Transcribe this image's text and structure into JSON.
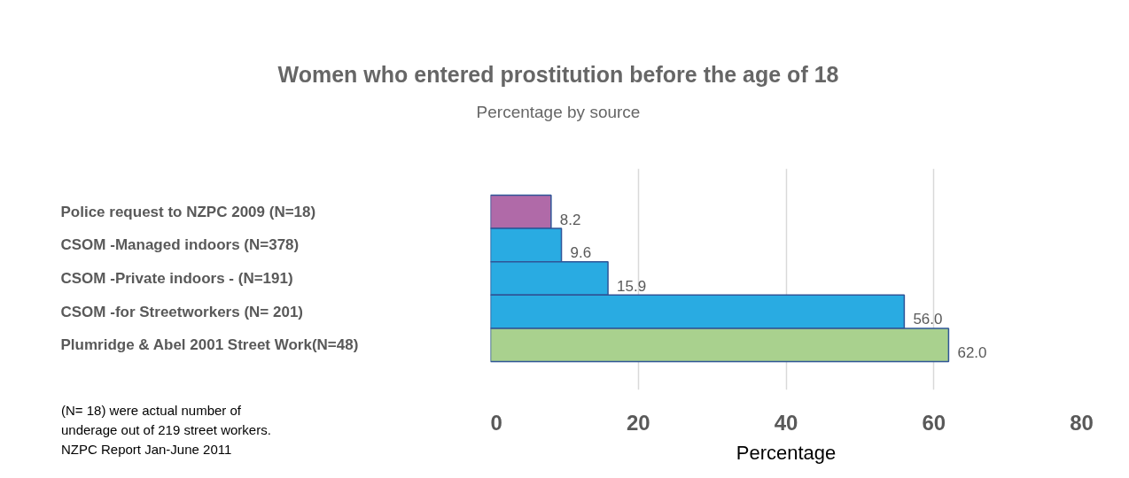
{
  "chart_data": {
    "type": "bar",
    "orientation": "horizontal",
    "title": "Women who entered prostitution before the age of 18",
    "subtitle": "Percentage by source",
    "xlabel": "Percentage",
    "categories": [
      "Police request to NZPC 2009 (N=18)",
      "CSOM -Managed indoors (N=378)",
      "CSOM -Private  indoors - (N=191)",
      "CSOM -for Streetworkers (N= 201)",
      "Plumridge & Abel 2001 Street Work(N=48)"
    ],
    "values": [
      8.2,
      9.6,
      15.9,
      56.0,
      62.0
    ],
    "value_labels": [
      "8.2",
      "9.6",
      "15.9",
      "56.0",
      "62.0"
    ],
    "colors": [
      "#b06aa8",
      "#29abe2",
      "#29abe2",
      "#29abe2",
      "#a9d18e"
    ],
    "xlim": [
      0,
      80
    ],
    "xticks": [
      0,
      20,
      40,
      60,
      80
    ],
    "grid": "x",
    "annotations": [
      "(N= 18) were actual number of\nunderage out of 219 street workers.\nNZPC Report Jan-June 2011"
    ]
  }
}
